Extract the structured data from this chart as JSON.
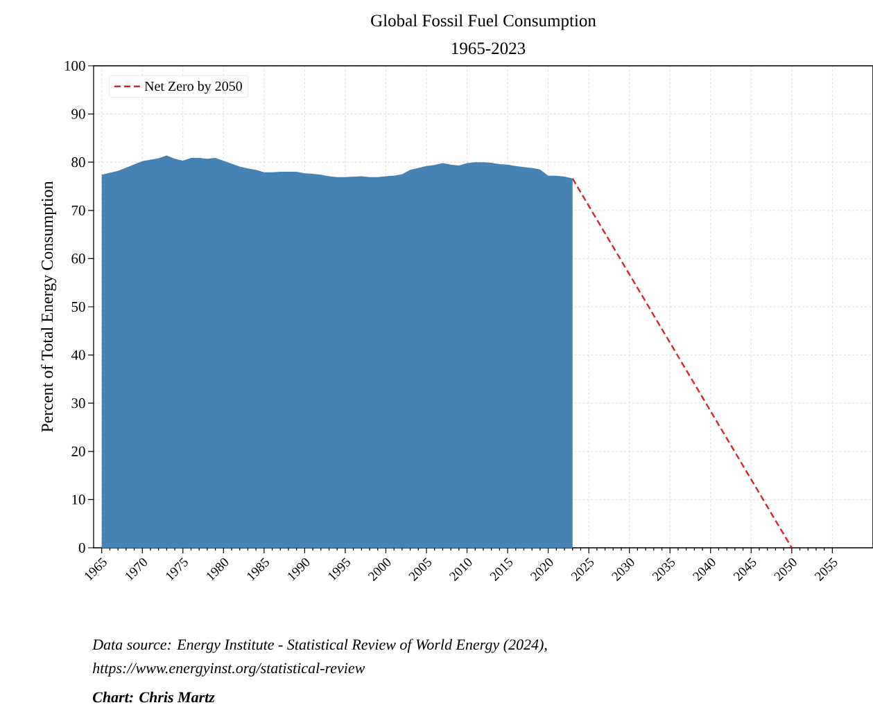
{
  "chart_data": {
    "type": "area",
    "title": "Global Fossil Fuel Consumption",
    "subtitle": "1965-2023",
    "ylabel": "Percent of Total Energy Consumption",
    "xlim": [
      1964,
      2060
    ],
    "ylim": [
      0,
      100
    ],
    "xticks": [
      1965,
      1970,
      1975,
      1980,
      1985,
      1990,
      1995,
      2000,
      2005,
      2010,
      2015,
      2020,
      2025,
      2030,
      2035,
      2040,
      2045,
      2050,
      2055
    ],
    "yticks": [
      0,
      10,
      20,
      30,
      40,
      50,
      60,
      70,
      80,
      90,
      100
    ],
    "grid": true,
    "legend": "top left",
    "series": [
      {
        "color": "#4682b4",
        "x": [
          1965,
          1967,
          1970,
          1972,
          1973,
          1974,
          1975,
          1976,
          1977,
          1978,
          1979,
          1980,
          1981,
          1982,
          1983,
          1984,
          1985,
          1986,
          1987,
          1988,
          1989,
          1990,
          1991,
          1992,
          1993,
          1994,
          1995,
          1996,
          1997,
          1998,
          1999,
          2000,
          2001,
          2002,
          2003,
          2004,
          2005,
          2006,
          2007,
          2008,
          2009,
          2010,
          2011,
          2012,
          2013,
          2014,
          2015,
          2016,
          2017,
          2018,
          2019,
          2020,
          2021,
          2022,
          2023
        ],
        "values": [
          77.4,
          78.2,
          80.2,
          80.8,
          81.4,
          80.7,
          80.3,
          80.9,
          80.9,
          80.7,
          80.9,
          80.3,
          79.7,
          79.1,
          78.7,
          78.4,
          77.9,
          77.9,
          78.0,
          78.0,
          78.0,
          77.7,
          77.6,
          77.4,
          77.1,
          76.9,
          76.9,
          77.0,
          77.1,
          76.9,
          76.9,
          77.1,
          77.2,
          77.5,
          78.4,
          78.8,
          79.2,
          79.4,
          79.8,
          79.5,
          79.3,
          79.8,
          80.0,
          80.0,
          79.9,
          79.6,
          79.5,
          79.2,
          79.0,
          78.8,
          78.5,
          77.2,
          77.2,
          77.0,
          76.6
        ]
      },
      {
        "type": "line",
        "name": "Net Zero by 2050",
        "color": "#d62728",
        "line_style": "dashed",
        "x": [
          2023,
          2050
        ],
        "values": [
          76.6,
          0
        ]
      }
    ],
    "annotations": [
      "Data source: Energy Institute - Statistical Review of World Energy (2024),",
      "https://www.energyinst.org/statistical-review",
      "**Chart: Chris Martz**"
    ]
  }
}
